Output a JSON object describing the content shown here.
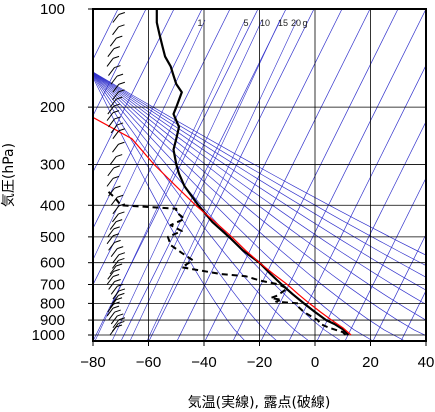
{
  "chart_data": {
    "type": "skew-t",
    "xlabel": "気温(実線), 露点(破線)",
    "ylabel": "気圧(hPa)",
    "xlim": [
      -80,
      40
    ],
    "x_ticks": [
      -80,
      -60,
      -40,
      -20,
      0,
      20,
      40
    ],
    "ylim": [
      1050,
      100
    ],
    "y_ticks": [
      100,
      200,
      300,
      400,
      500,
      600,
      700,
      800,
      900,
      1000
    ],
    "grid": true,
    "mixing_ratio_labels": [
      "1",
      "5",
      "10",
      "15",
      "20",
      "g"
    ],
    "colors": {
      "axes": "#000000",
      "temperature": "#000000",
      "dewpoint": "#000000",
      "parcel": "#ff0000",
      "adiabats": "#3333cc",
      "wind_barbs": "#000000"
    },
    "series": [
      {
        "name": "",
        "style": "solid",
        "points": [
          [
            1000,
            12
          ],
          [
            960,
            10
          ],
          [
            925,
            7
          ],
          [
            900,
            4
          ],
          [
            850,
            0
          ],
          [
            800,
            -4
          ],
          [
            750,
            -8
          ],
          [
            700,
            -12
          ],
          [
            650,
            -16
          ],
          [
            600,
            -20
          ],
          [
            550,
            -26
          ],
          [
            500,
            -31
          ],
          [
            450,
            -37
          ],
          [
            400,
            -42
          ],
          [
            350,
            -47
          ],
          [
            320,
            -49
          ],
          [
            300,
            -50
          ],
          [
            270,
            -51
          ],
          [
            250,
            -50
          ],
          [
            230,
            -49
          ],
          [
            210,
            -51
          ],
          [
            200,
            -50
          ],
          [
            180,
            -48
          ],
          [
            170,
            -50
          ],
          [
            160,
            -51
          ],
          [
            150,
            -52
          ],
          [
            140,
            -54
          ],
          [
            130,
            -55
          ],
          [
            120,
            -56
          ],
          [
            110,
            -57
          ],
          [
            100,
            -57
          ]
        ]
      },
      {
        "name": "",
        "style": "dashed",
        "points": [
          [
            1000,
            11
          ],
          [
            980,
            10
          ],
          [
            950,
            5
          ],
          [
            925,
            2
          ],
          [
            900,
            1
          ],
          [
            870,
            -2
          ],
          [
            850,
            -4
          ],
          [
            820,
            -6
          ],
          [
            800,
            -6
          ],
          [
            790,
            -14
          ],
          [
            780,
            -12
          ],
          [
            770,
            -16
          ],
          [
            760,
            -14
          ],
          [
            750,
            -13
          ],
          [
            720,
            -10
          ],
          [
            700,
            -13
          ],
          [
            680,
            -20
          ],
          [
            660,
            -25
          ],
          [
            650,
            -34
          ],
          [
            620,
            -48
          ],
          [
            590,
            -44
          ],
          [
            560,
            -48
          ],
          [
            530,
            -52
          ],
          [
            500,
            -53
          ],
          [
            480,
            -48
          ],
          [
            460,
            -52
          ],
          [
            440,
            -47
          ],
          [
            420,
            -50
          ],
          [
            410,
            -50
          ],
          [
            400,
            -70
          ],
          [
            380,
            -72
          ],
          [
            360,
            -75
          ]
        ]
      },
      {
        "name": "",
        "style": "parcel",
        "points": [
          [
            1000,
            13
          ],
          [
            950,
            10
          ],
          [
            900,
            6
          ],
          [
            850,
            2
          ],
          [
            800,
            -2
          ],
          [
            750,
            -6
          ],
          [
            700,
            -10
          ],
          [
            650,
            -15
          ],
          [
            600,
            -20
          ],
          [
            550,
            -25
          ],
          [
            500,
            -30
          ],
          [
            450,
            -36
          ],
          [
            400,
            -43
          ],
          [
            350,
            -50
          ],
          [
            300,
            -58
          ],
          [
            250,
            -66
          ],
          [
            215,
            -80
          ]
        ]
      }
    ]
  }
}
